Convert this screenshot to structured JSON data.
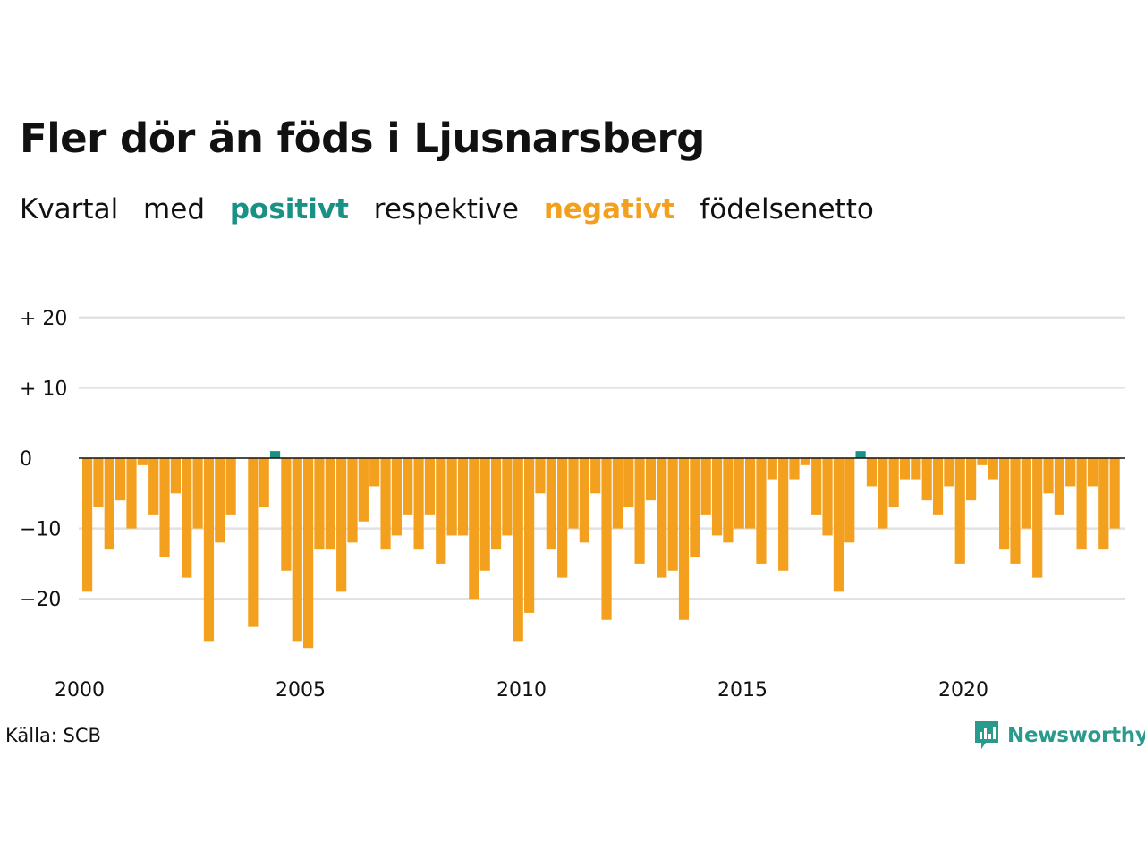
{
  "title": "Fler dör än föds i Ljusnarsberg",
  "subtitle": {
    "parts": [
      "Kvartal",
      "med",
      "positivt",
      "respektive",
      "negativt",
      "födelsenetto"
    ]
  },
  "colors": {
    "positive": "#1a9185",
    "negative": "#f4a01f",
    "grid": "#e2e2e2",
    "zero": "#111111"
  },
  "source": "Källa: SCB",
  "brand": {
    "name": "Newsworthy",
    "icon": "newsworthy-chart-icon"
  },
  "chart_data": {
    "type": "bar",
    "x_label": "",
    "y_label": "",
    "ylim": [
      -28,
      22
    ],
    "y_ticks": [
      {
        "value": 20,
        "label": "+ 20"
      },
      {
        "value": 10,
        "label": "+ 10"
      },
      {
        "value": 0,
        "label": "0"
      },
      {
        "value": -10,
        "label": "−10"
      },
      {
        "value": -20,
        "label": "−20"
      }
    ],
    "x_ticks": [
      "2000",
      "2005",
      "2010",
      "2015",
      "2020"
    ],
    "x_start": "2000 Q1",
    "frequency": "quarterly",
    "values": [
      -19,
      -7,
      -13,
      -6,
      -10,
      -1,
      -8,
      -14,
      -5,
      -17,
      -10,
      -26,
      -12,
      -8,
      0,
      -24,
      -7,
      1,
      -16,
      -26,
      -27,
      -13,
      -13,
      -19,
      -12,
      -9,
      -4,
      -13,
      -11,
      -8,
      -13,
      -8,
      -15,
      -11,
      -11,
      -20,
      -16,
      -13,
      -11,
      -26,
      -22,
      -5,
      -13,
      -17,
      -10,
      -12,
      -5,
      -23,
      -10,
      -7,
      -15,
      -6,
      -17,
      -16,
      -23,
      -14,
      -8,
      -11,
      -12,
      -10,
      -10,
      -15,
      -3,
      -16,
      -3,
      -1,
      -8,
      -11,
      -19,
      -12,
      1,
      -4,
      -10,
      -7,
      -3,
      -3,
      -6,
      -8,
      -4,
      -15,
      -6,
      -1,
      -3,
      -13,
      -15,
      -10,
      -17,
      -5,
      -8,
      -4,
      -13,
      -4,
      -13,
      -10
    ],
    "grid": true,
    "legend": "none"
  }
}
